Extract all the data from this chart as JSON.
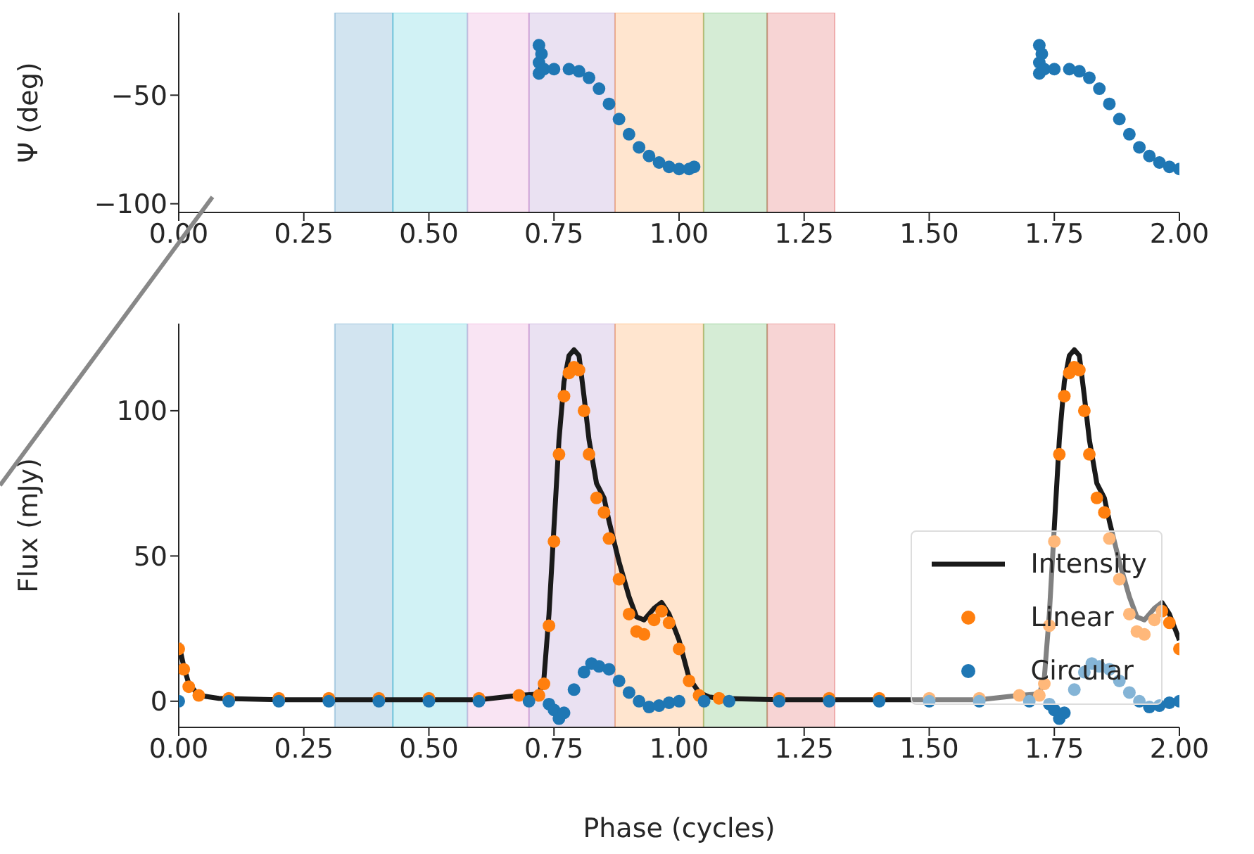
{
  "chart_data": [
    {
      "type": "scatter",
      "ylabel": "Ψ (deg)",
      "xlim": [
        0,
        2
      ],
      "ylim": [
        -104,
        -12
      ],
      "marker": "circle",
      "grid": false,
      "legend": false,
      "xticks": [
        {
          "value": 0,
          "label": "0.00"
        },
        {
          "value": 0.25,
          "label": "0.25"
        },
        {
          "value": 0.5,
          "label": "0.50"
        },
        {
          "value": 0.75,
          "label": "0.75"
        },
        {
          "value": 1,
          "label": "1.00"
        },
        {
          "value": 1.25,
          "label": "1.25"
        },
        {
          "value": 1.5,
          "label": "1.50"
        },
        {
          "value": 1.75,
          "label": "1.75"
        },
        {
          "value": 2,
          "label": "2.00"
        }
      ],
      "yticks": [
        {
          "value": -50,
          "label": "−50"
        },
        {
          "value": -100,
          "label": "−100"
        }
      ],
      "bands": [
        {
          "axis": "x",
          "from": 0.312,
          "to": 0.428,
          "color": "#1f77b4"
        },
        {
          "axis": "x",
          "from": 0.428,
          "to": 0.577,
          "color": "#17becf"
        },
        {
          "axis": "x",
          "from": 0.577,
          "to": 0.7,
          "color": "#e377c2"
        },
        {
          "axis": "x",
          "from": 0.7,
          "to": 0.872,
          "color": "#9467bd"
        },
        {
          "axis": "x",
          "from": 0.872,
          "to": 1.049,
          "color": "#ff7f0e"
        },
        {
          "axis": "x",
          "from": 1.049,
          "to": 1.176,
          "color": "#2ca02c"
        },
        {
          "axis": "x",
          "from": 1.176,
          "to": 1.311,
          "color": "#d62728"
        }
      ],
      "series": [
        {
          "color": "#1f77b4",
          "x": [
            0.72,
            0.72,
            0.72,
            0.725,
            0.73,
            0.75,
            0.78,
            0.8,
            0.82,
            0.84,
            0.86,
            0.88,
            0.9,
            0.92,
            0.94,
            0.96,
            0.98,
            1.0,
            1.02,
            1.03,
            1.72,
            1.72,
            1.72,
            1.725,
            1.73,
            1.75,
            1.78,
            1.8,
            1.82,
            1.84,
            1.86,
            1.88,
            1.9,
            1.92,
            1.94,
            1.96,
            1.98,
            2.0
          ],
          "values": [
            -27,
            -35,
            -40,
            -31,
            -38,
            -38,
            -38,
            -39,
            -42,
            -47,
            -54,
            -61,
            -68,
            -74,
            -78,
            -81,
            -83,
            -84,
            -84,
            -83,
            -27,
            -35,
            -40,
            -31,
            -38,
            -38,
            -38,
            -39,
            -42,
            -47,
            -54,
            -61,
            -68,
            -74,
            -78,
            -81,
            -83,
            -84
          ]
        }
      ]
    },
    {
      "type": "line",
      "xlabel": "Phase (cycles)",
      "ylabel": "Flux (mJy)",
      "xlim": [
        0,
        2
      ],
      "ylim": [
        -9,
        130
      ],
      "grid": false,
      "legend": "bottom right",
      "xticks": [
        {
          "value": 0,
          "label": "0.00"
        },
        {
          "value": 0.25,
          "label": "0.25"
        },
        {
          "value": 0.5,
          "label": "0.50"
        },
        {
          "value": 0.75,
          "label": "0.75"
        },
        {
          "value": 1,
          "label": "1.00"
        },
        {
          "value": 1.25,
          "label": "1.25"
        },
        {
          "value": 1.5,
          "label": "1.50"
        },
        {
          "value": 1.75,
          "label": "1.75"
        },
        {
          "value": 2,
          "label": "2.00"
        }
      ],
      "yticks": [
        0,
        50,
        100
      ],
      "bands": [
        {
          "axis": "x",
          "from": 0.312,
          "to": 0.428,
          "color": "#1f77b4"
        },
        {
          "axis": "x",
          "from": 0.428,
          "to": 0.577,
          "color": "#17becf"
        },
        {
          "axis": "x",
          "from": 0.577,
          "to": 0.7,
          "color": "#e377c2"
        },
        {
          "axis": "x",
          "from": 0.7,
          "to": 0.872,
          "color": "#9467bd"
        },
        {
          "axis": "x",
          "from": 0.872,
          "to": 1.049,
          "color": "#ff7f0e"
        },
        {
          "axis": "x",
          "from": 1.049,
          "to": 1.176,
          "color": "#2ca02c"
        },
        {
          "axis": "x",
          "from": 1.176,
          "to": 1.311,
          "color": "#d62728"
        }
      ],
      "series": [
        {
          "name": "Intensity",
          "color": "#1a1a1a",
          "x": [
            0,
            0.01,
            0.02,
            0.04,
            0.08,
            0.2,
            0.4,
            0.6,
            0.68,
            0.72,
            0.73,
            0.74,
            0.75,
            0.76,
            0.77,
            0.78,
            0.79,
            0.8,
            0.81,
            0.82,
            0.835,
            0.85,
            0.86,
            0.88,
            0.9,
            0.915,
            0.93,
            0.95,
            0.965,
            0.98,
            1.0,
            1.02,
            1.04,
            1.06,
            1.08,
            1.2,
            1.4,
            1.6,
            1.68,
            1.72,
            1.73,
            1.74,
            1.75,
            1.76,
            1.77,
            1.78,
            1.79,
            1.8,
            1.81,
            1.82,
            1.835,
            1.85,
            1.86,
            1.88,
            1.9,
            1.915,
            1.93,
            1.95,
            1.965,
            1.98,
            2.0
          ],
          "values": [
            20,
            12,
            6,
            2,
            1,
            0.5,
            0.5,
            0.5,
            2,
            2.5,
            8,
            30,
            60,
            90,
            110,
            119,
            121,
            119,
            105,
            90,
            75,
            70,
            62,
            48,
            36,
            29,
            28,
            32,
            34,
            30,
            21,
            8,
            3,
            1.5,
            1,
            0.5,
            0.5,
            0.5,
            2,
            2.5,
            8,
            30,
            60,
            90,
            110,
            119,
            121,
            119,
            105,
            90,
            75,
            70,
            62,
            48,
            36,
            29,
            28,
            32,
            34,
            30,
            21
          ]
        },
        {
          "name": "Linear",
          "type": "scatter",
          "marker": "circle",
          "color": "#ff7f0e",
          "x": [
            0,
            0.01,
            0.02,
            0.04,
            0.1,
            0.2,
            0.3,
            0.4,
            0.5,
            0.6,
            0.68,
            0.72,
            0.73,
            0.74,
            0.75,
            0.76,
            0.77,
            0.78,
            0.79,
            0.8,
            0.81,
            0.82,
            0.835,
            0.85,
            0.86,
            0.88,
            0.9,
            0.915,
            0.93,
            0.95,
            0.965,
            0.98,
            1.0,
            1.02,
            1.04,
            1.08,
            1.2,
            1.3,
            1.4,
            1.5,
            1.6,
            1.68,
            1.72,
            1.73,
            1.74,
            1.75,
            1.76,
            1.77,
            1.78,
            1.79,
            1.8,
            1.81,
            1.82,
            1.835,
            1.85,
            1.86,
            1.88,
            1.9,
            1.915,
            1.93,
            1.95,
            1.965,
            1.98,
            2.0
          ],
          "values": [
            18,
            11,
            5,
            2,
            1,
            1,
            1,
            1,
            1,
            1,
            2,
            2,
            6,
            26,
            55,
            85,
            105,
            113,
            115,
            114,
            100,
            85,
            70,
            65,
            56,
            42,
            30,
            24,
            23,
            28,
            31,
            27,
            18,
            7,
            2,
            1,
            1,
            1,
            1,
            1,
            1,
            2,
            2,
            6,
            26,
            55,
            85,
            105,
            113,
            115,
            114,
            100,
            85,
            70,
            65,
            56,
            42,
            30,
            24,
            23,
            28,
            31,
            27,
            18
          ]
        },
        {
          "name": "Circular",
          "type": "scatter",
          "marker": "circle",
          "color": "#1f77b4",
          "x": [
            0,
            0.1,
            0.2,
            0.3,
            0.4,
            0.5,
            0.6,
            0.7,
            0.74,
            0.75,
            0.76,
            0.77,
            0.79,
            0.81,
            0.825,
            0.84,
            0.86,
            0.88,
            0.9,
            0.92,
            0.94,
            0.96,
            0.98,
            1.0,
            1.05,
            1.1,
            1.2,
            1.3,
            1.4,
            1.5,
            1.6,
            1.7,
            1.74,
            1.75,
            1.76,
            1.77,
            1.79,
            1.81,
            1.825,
            1.84,
            1.86,
            1.88,
            1.9,
            1.92,
            1.94,
            1.96,
            1.98,
            2.0
          ],
          "values": [
            0,
            0,
            0,
            0,
            0,
            0,
            0,
            0,
            -1,
            -3,
            -6,
            -4,
            4,
            10,
            13,
            12,
            11,
            7,
            3,
            0,
            -2,
            -1.5,
            -0.5,
            0,
            0,
            0,
            0,
            0,
            0,
            0,
            0,
            0,
            -1,
            -3,
            -6,
            -4,
            4,
            10,
            13,
            12,
            11,
            7,
            3,
            0,
            -2,
            -1.5,
            -0.5,
            0
          ]
        }
      ]
    }
  ]
}
